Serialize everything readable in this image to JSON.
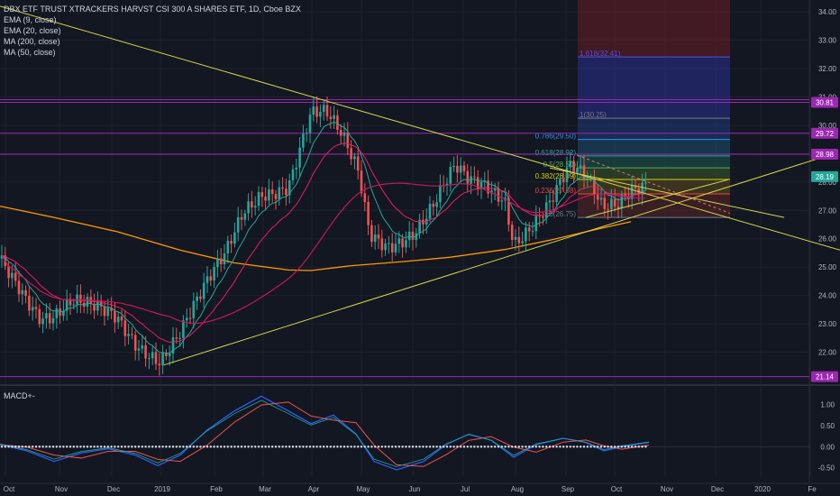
{
  "chart_data": {
    "type": "candlestick",
    "title": "DBX ETF TRUST XTRACKERS HARVST CSI 300 A SHARES ETF, 1D, Cboe BZX",
    "indicators": [
      "EMA (9, close)",
      "EMA (20, close)",
      "MA (200, close)",
      "MA (50, close)"
    ],
    "macd_label": "MACD+-",
    "x_ticks": [
      "Oct",
      "Nov",
      "Dec",
      "2019",
      "Feb",
      "Mar",
      "Apr",
      "May",
      "Jun",
      "Jul",
      "Aug",
      "Sep",
      "Oct",
      "Nov",
      "Dec",
      "2020",
      "Fe"
    ],
    "price_ticks": [
      "34.00",
      "33.00",
      "32.00",
      "31.00",
      "30.00",
      "29.00",
      "28.00",
      "27.00",
      "26.00",
      "25.00",
      "24.00",
      "23.00",
      "22.00"
    ],
    "ylim": [
      21.0,
      34.1
    ],
    "macd_ticks": [
      "1.00",
      "0.50",
      "0.00",
      "-0.50"
    ],
    "macd_ylim": [
      -0.7,
      1.4
    ],
    "horizontal_levels": [
      30.81,
      29.72,
      28.98,
      21.14
    ],
    "price_badges": [
      {
        "label": "30.81",
        "color": "#9c27b0"
      },
      {
        "label": "29.72",
        "color": "#9c27b0"
      },
      {
        "label": "28.98",
        "color": "#9c27b0"
      },
      {
        "label": "28.19",
        "color": "#26a69a"
      },
      {
        "label": "21.14",
        "color": "#9c27b0"
      }
    ],
    "fib_levels": [
      {
        "label": "1.618(32.41)",
        "value": 32.41,
        "color": "#5050e0"
      },
      {
        "label": "1(30.25)",
        "value": 30.25,
        "color": "#787b86"
      },
      {
        "label": "0.786(29.50)",
        "value": 29.5,
        "color": "#2196f3"
      },
      {
        "label": "0.618(28.92)",
        "value": 28.92,
        "color": "#26a69a"
      },
      {
        "label": "0.5(28.50)",
        "value": 28.5,
        "color": "#4caf50"
      },
      {
        "label": "0.382(28.09)",
        "value": 28.09,
        "color": "#d4d400"
      },
      {
        "label": "0.236(27.58)",
        "value": 27.58,
        "color": "#f44336"
      },
      {
        "label": "0(26.75)",
        "value": 26.75,
        "color": "#787b86"
      }
    ],
    "colors": {
      "up": "#26a69a",
      "down": "#ef5350",
      "ema9": "#26a69a",
      "ema20": "#e91e63",
      "ma200": "#ff9800",
      "ma50": "#c2185b",
      "trend": "#d4d44a",
      "level": "#9c27b0"
    }
  }
}
